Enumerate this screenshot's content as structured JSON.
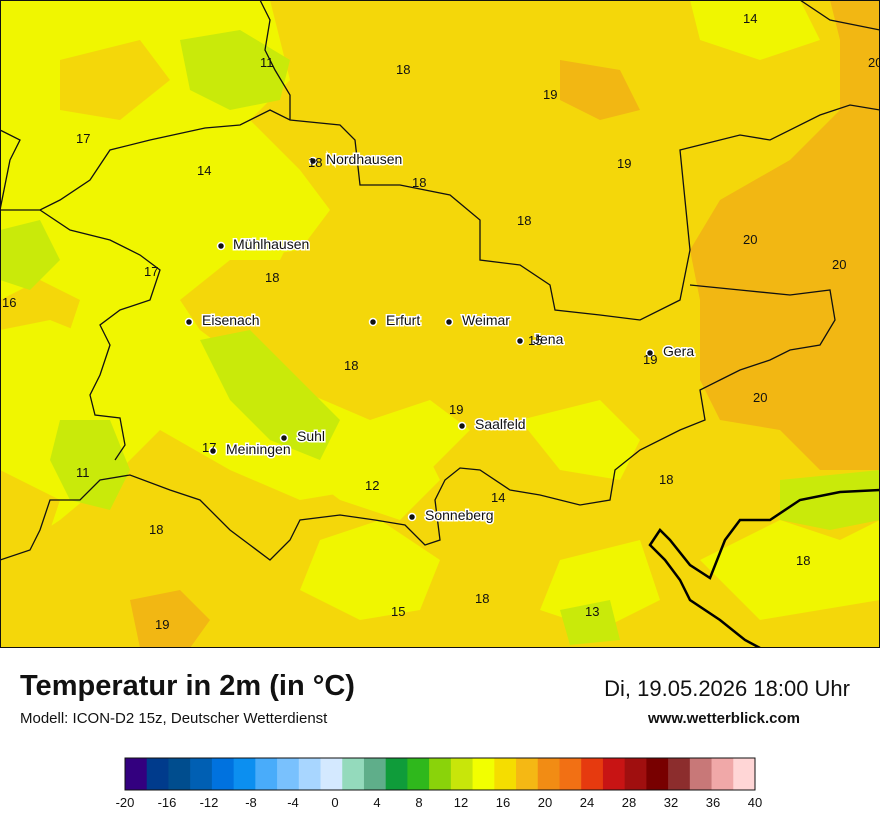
{
  "header": {
    "title": "Temperatur in 2m (in °C)",
    "model": "Modell: ICON-D2 15z, Deutscher Wetterdienst",
    "datetime": "Di, 19.05.2026 18:00 Uhr",
    "website": "www.wetterblick.com"
  },
  "cities": [
    {
      "name": "Nordhausen"
    },
    {
      "name": "Mühlhausen"
    },
    {
      "name": "Eisenach"
    },
    {
      "name": "Erfurt"
    },
    {
      "name": "Weimar"
    },
    {
      "name": "Jena"
    },
    {
      "name": "Gera"
    },
    {
      "name": "Suhl"
    },
    {
      "name": "Meiningen"
    },
    {
      "name": "Saalfeld"
    },
    {
      "name": "Sonneberg"
    }
  ],
  "temperature_values": [
    "14",
    "20",
    "11",
    "18",
    "19",
    "17",
    "14",
    "18",
    "19",
    "18",
    "18",
    "20",
    "20",
    "17",
    "16",
    "18",
    "15",
    "18",
    "19",
    "19",
    "20",
    "17",
    "11",
    "12",
    "14",
    "18",
    "18",
    "18",
    "15",
    "18",
    "13",
    "19"
  ],
  "colorbar": {
    "ticks": [
      "-20",
      "-16",
      "-12",
      "-8",
      "-4",
      "0",
      "4",
      "8",
      "12",
      "16",
      "20",
      "24",
      "28",
      "32",
      "36",
      "40"
    ],
    "colors": [
      "#33007f",
      "#003b8c",
      "#004d8e",
      "#005fb3",
      "#0072df",
      "#0c8ff0",
      "#49acfa",
      "#79c1fd",
      "#a8d6ff",
      "#d4e9ff",
      "#94dabc",
      "#5fae8a",
      "#0f9c3a",
      "#2fb81c",
      "#8ad30a",
      "#c8e60a",
      "#f2ff00",
      "#f5dd00",
      "#f5b814",
      "#f28c14",
      "#f27014",
      "#e63a0f",
      "#c81414",
      "#a00f0f",
      "#780000",
      "#8c2d2d",
      "#c87878",
      "#f0a8a8",
      "#ffd6d6"
    ]
  },
  "colors": {
    "land_base": "#f0f600",
    "warm_area": "#f4d70a",
    "warmer_area": "#f2b713",
    "cool_area": "#c9ea0a"
  }
}
